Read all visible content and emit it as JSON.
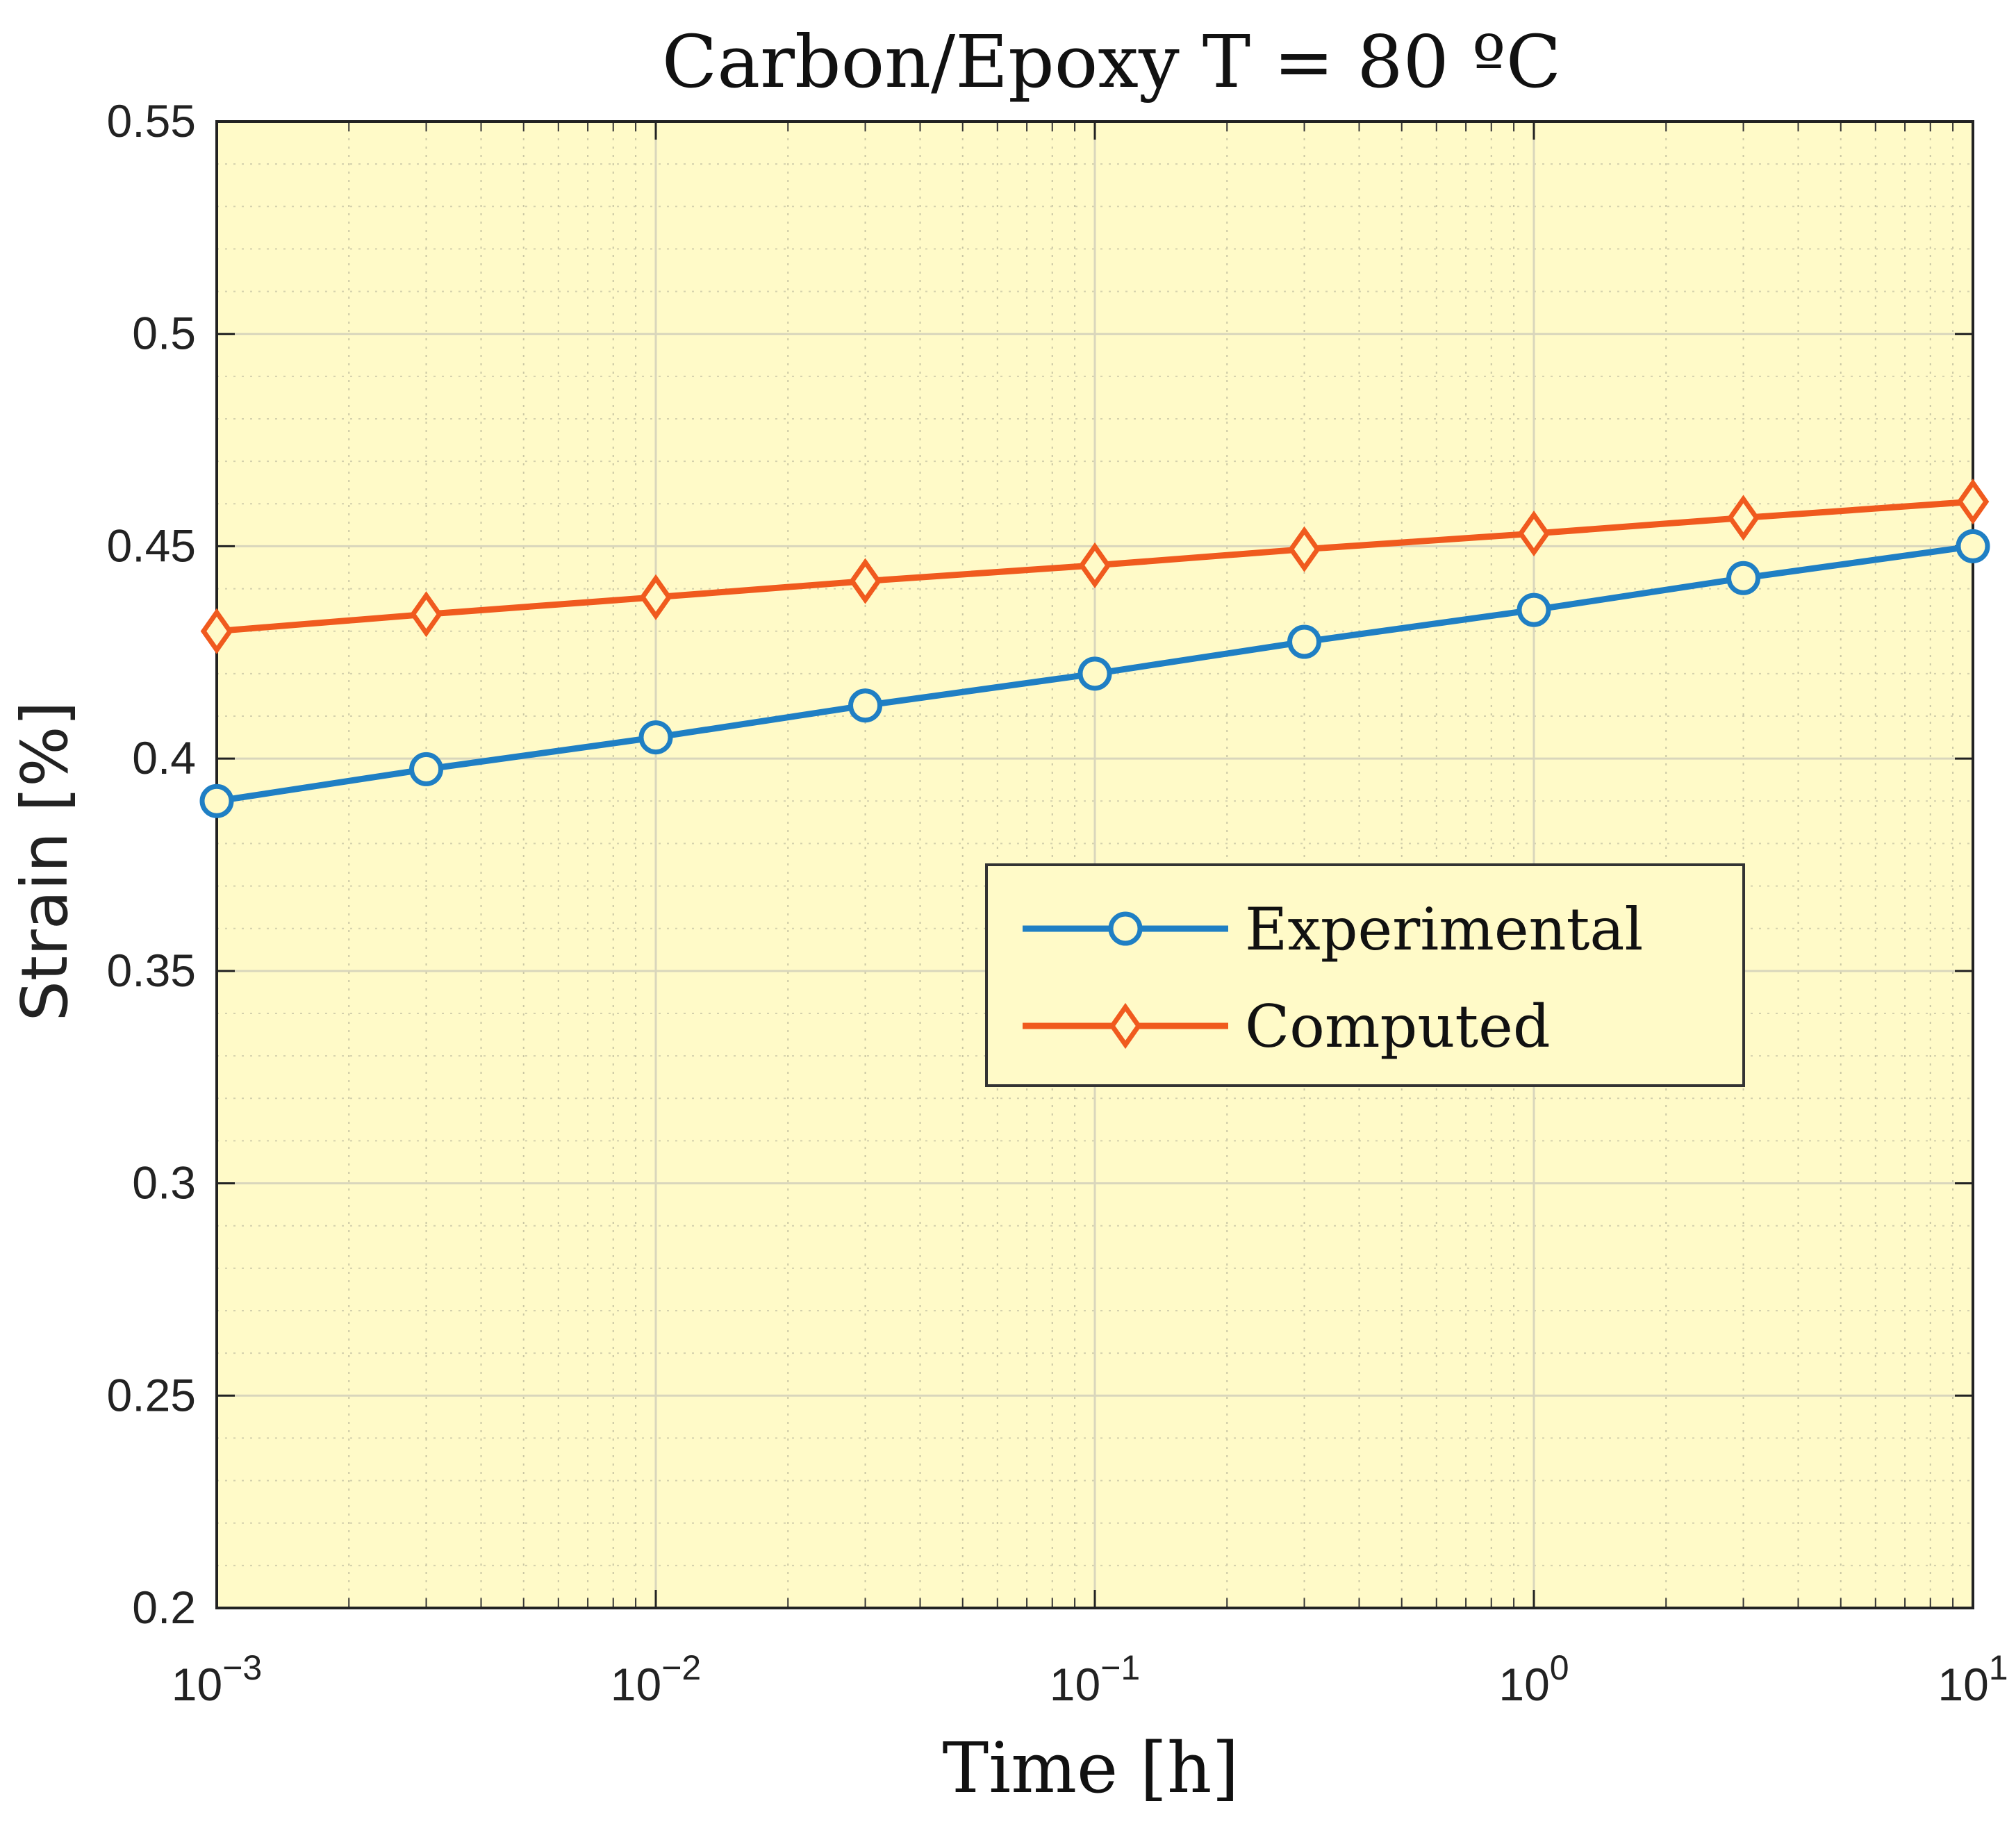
{
  "chart_data": {
    "type": "line",
    "title": "Carbon/Epoxy T = 80 ºC",
    "xlabel": "Time [h]",
    "ylabel": "Strain [%]",
    "xscale": "log",
    "xlim": [
      0.001,
      10
    ],
    "ylim": [
      0.2,
      0.55
    ],
    "grid": true,
    "minor_grid": true,
    "background_color": "#fffac8",
    "x_tick_labels": [
      {
        "base": "10",
        "exp": "−3",
        "value": 0.001
      },
      {
        "base": "10",
        "exp": "−2",
        "value": 0.01
      },
      {
        "base": "10",
        "exp": "−1",
        "value": 0.1
      },
      {
        "base": "10",
        "exp": "0",
        "value": 1
      },
      {
        "base": "10",
        "exp": "1",
        "value": 10
      }
    ],
    "y_tick_labels": [
      "0.2",
      "0.25",
      "0.3",
      "0.35",
      "0.4",
      "0.45",
      "0.5",
      "0.55"
    ],
    "y_ticks": [
      0.2,
      0.25,
      0.3,
      0.35,
      0.4,
      0.45,
      0.5,
      0.55
    ],
    "legend_position": "center-right",
    "x": [
      0.001,
      0.003,
      0.01,
      0.03,
      0.1,
      0.3,
      1,
      3,
      10
    ],
    "series": [
      {
        "name": "Experimental",
        "color": "#1f7fc4",
        "marker": "circle",
        "values": [
          0.39,
          0.3975,
          0.405,
          0.4125,
          0.42,
          0.4275,
          0.435,
          0.4425,
          0.45
        ]
      },
      {
        "name": "Computed",
        "color": "#f05a1e",
        "marker": "diamond",
        "values": [
          0.43,
          0.434,
          0.438,
          0.4418,
          0.4455,
          0.4493,
          0.453,
          0.4567,
          0.4605
        ]
      }
    ]
  }
}
